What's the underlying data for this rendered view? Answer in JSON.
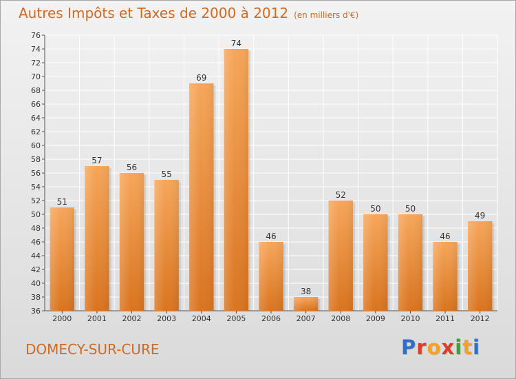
{
  "header": {
    "title": "Autres Impôts et Taxes de 2000 à 2012",
    "subtitle": "(en milliers d'€)"
  },
  "footer": {
    "place": "DOMECY-SUR-CURE",
    "brand": "Proxiti",
    "brand_colors": [
      "#2f6fc4",
      "#e23b2a",
      "#f4a21f",
      "#e23b2a",
      "#3aa13a",
      "#f4a21f",
      "#2f6fc4"
    ]
  },
  "colors": {
    "text_accent": "#d2691e",
    "bar_top": "#f6a65a",
    "bar_bottom": "#d9741f",
    "grid": "#ffffff",
    "background": "#e8e8e8"
  },
  "chart_data": {
    "type": "bar",
    "categories": [
      "2000",
      "2001",
      "2002",
      "2003",
      "2004",
      "2005",
      "2006",
      "2007",
      "2008",
      "2009",
      "2010",
      "2011",
      "2012"
    ],
    "values": [
      51,
      57,
      56,
      55,
      69,
      74,
      46,
      38,
      52,
      50,
      50,
      46,
      49
    ],
    "title": "Autres Impôts et Taxes de 2000 à 2012",
    "subtitle": "(en milliers d'€)",
    "xlabel": "",
    "ylabel": "",
    "ylim": [
      36,
      76
    ],
    "ytick_step": 2,
    "grid": true,
    "data_labels": true
  }
}
